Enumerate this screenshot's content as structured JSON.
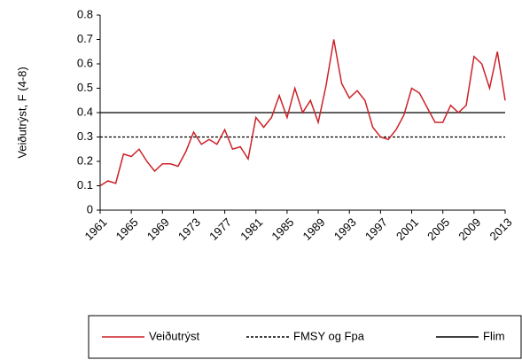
{
  "chart_data": {
    "type": "line",
    "y_label": "Veiðutrýst, F (4-8)",
    "x": [
      1961,
      1962,
      1963,
      1964,
      1965,
      1966,
      1967,
      1968,
      1969,
      1970,
      1971,
      1972,
      1973,
      1974,
      1975,
      1976,
      1977,
      1978,
      1979,
      1980,
      1981,
      1982,
      1983,
      1984,
      1985,
      1986,
      1987,
      1988,
      1989,
      1990,
      1991,
      1992,
      1993,
      1994,
      1995,
      1996,
      1997,
      1998,
      1999,
      2000,
      2001,
      2002,
      2003,
      2004,
      2005,
      2006,
      2007,
      2008,
      2009,
      2010,
      2011,
      2012,
      2013
    ],
    "series": [
      {
        "name": "Veiðutrýst",
        "color": "#cc2229",
        "values": [
          0.1,
          0.12,
          0.11,
          0.23,
          0.22,
          0.25,
          0.2,
          0.16,
          0.19,
          0.19,
          0.18,
          0.24,
          0.32,
          0.27,
          0.29,
          0.27,
          0.33,
          0.25,
          0.26,
          0.21,
          0.38,
          0.34,
          0.38,
          0.47,
          0.38,
          0.5,
          0.4,
          0.45,
          0.36,
          0.51,
          0.7,
          0.52,
          0.46,
          0.49,
          0.45,
          0.34,
          0.3,
          0.29,
          0.33,
          0.39,
          0.5,
          0.48,
          0.42,
          0.36,
          0.36,
          0.43,
          0.4,
          0.43,
          0.63,
          0.6,
          0.5,
          0.65,
          0.45
        ]
      }
    ],
    "reference_lines": [
      {
        "name": "FMSY og Fpa",
        "value": 0.3,
        "style": "dashed",
        "color": "#000000"
      },
      {
        "name": "Flim",
        "value": 0.4,
        "style": "solid",
        "color": "#000000"
      }
    ],
    "xlim": [
      1961,
      2013
    ],
    "xticks": [
      1961,
      1965,
      1969,
      1973,
      1977,
      1981,
      1985,
      1989,
      1993,
      1997,
      2001,
      2005,
      2009,
      2013
    ],
    "ylim": [
      0,
      0.8
    ],
    "yticks": [
      0,
      0.1,
      0.2,
      0.3,
      0.4,
      0.5,
      0.6,
      0.7,
      0.8
    ]
  }
}
